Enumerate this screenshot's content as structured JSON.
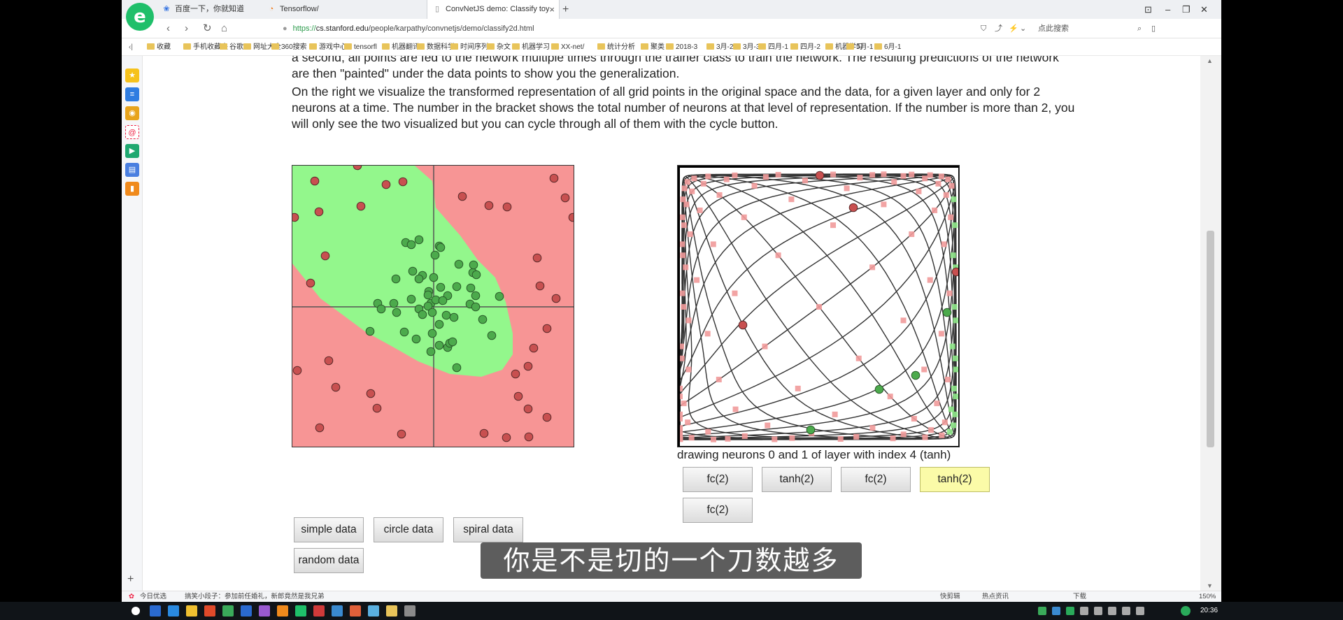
{
  "tabs": [
    {
      "label": "百度一下，你就知道",
      "icon": "baidu-icon"
    },
    {
      "label": "Tensorflow/",
      "icon": "tensorflow-icon"
    },
    {
      "label": "ConvNetJS demo: Classify toy",
      "icon": "page-icon"
    }
  ],
  "address": {
    "url_host": "cs.stanford.edu",
    "url_path": "/people/karpathy/convnetjs/demo/classify2d.html",
    "scheme": "https://"
  },
  "search": {
    "placeholder": "点此搜索"
  },
  "bookmarks": [
    "收藏",
    "手机收藏夹",
    "谷歌",
    "网址大全",
    "360搜索",
    "游戏中心",
    "tensorfl",
    "机器翻译",
    "数据科学",
    "时间序列",
    "杂文",
    "机器学习",
    "XX-net/",
    "统计分析",
    "聚类",
    "2018-3",
    "3月-2",
    "3月-3",
    "四月-1",
    "四月-2",
    "机器学习",
    "5月-1",
    "6月-1"
  ],
  "content": {
    "para1": "a second, all points are fed to the network multiple times through the trainer class to train the network. The resulting predictions of the network are then \"painted\" under the data points to show you the generalization.",
    "para2": "On the right we visualize the transformed representation of all grid points in the original space and the data, for a given layer and only for 2 neurons at a time. The number in the bracket shows the total number of neurons at that level of representation. If the number is more than 2, you will only see the two visualized but you can cycle through all of them with the cycle button.",
    "caption": "drawing neurons 0 and 1 of layer with index 4 (tanh)"
  },
  "data_buttons": [
    "simple data",
    "circle data",
    "spiral data",
    "random data"
  ],
  "layer_buttons": [
    "fc(2)",
    "tanh(2)",
    "fc(2)",
    "tanh(2)",
    "fc(2)"
  ],
  "statusbar": {
    "left1": "今日优选",
    "left2": "搞笑小段子：参加前任婚礼，新郎竟然是我兄弟",
    "right1": "快剪辑",
    "right2": "热点资讯",
    "right3": "下载",
    "zoom": "150%"
  },
  "taskbar": {
    "time": "20:36"
  },
  "subtitle": "你是不是切的一个刀数越多",
  "colors": {
    "red_region": "#f79595",
    "green_region": "#93f78c",
    "red_point": "#c85050",
    "green_point": "#4caa4c"
  }
}
